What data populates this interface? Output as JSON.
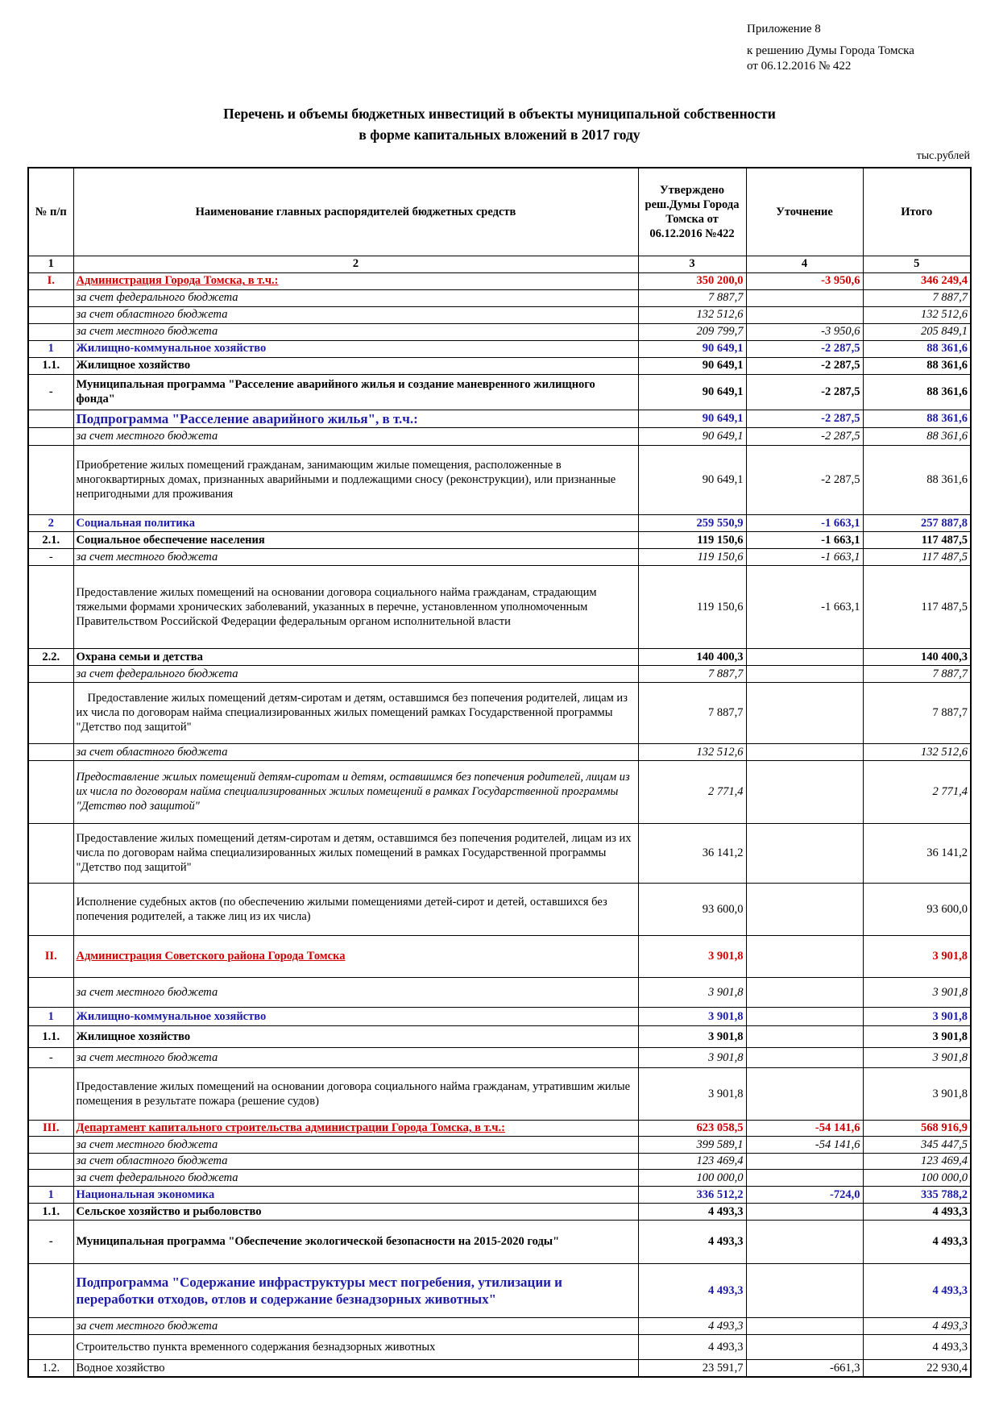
{
  "header": {
    "appendix": "Приложение 8",
    "decision": "к решению Думы Города Томска",
    "date": "от 06.12.2016  № 422"
  },
  "title": [
    "Перечень и объемы бюджетных инвестиций в объекты муниципальной собственности",
    "в форме капитальных вложений в 2017 году"
  ],
  "unit": "тыс.рублей",
  "table": {
    "columns": [
      "№ п/п",
      "Наименование главных распорядителей бюджетных средств",
      "Утверждено реш.Думы Города Томска от 06.12.2016 №422",
      "Уточнение",
      "Итого"
    ],
    "column_numbers": [
      "1",
      "2",
      "3",
      "4",
      "5"
    ],
    "rows": [
      [
        "I.",
        "Администрация Города Томска, в т.ч.:",
        "350 200,0",
        "-3 950,6",
        "346 249,4"
      ],
      [
        null,
        "за счет федерального бюджета",
        "7 887,7",
        null,
        "7 887,7"
      ],
      [
        null,
        "за счет областного бюджета",
        "132 512,6",
        null,
        "132 512,6"
      ],
      [
        null,
        "за счет  местного бюджета",
        "209 799,7",
        "-3 950,6",
        "205 849,1"
      ],
      [
        "1",
        "Жилищно-коммунальное хозяйство",
        "90 649,1",
        "-2 287,5",
        "88 361,6"
      ],
      [
        "1.1.",
        "Жилищное хозяйство",
        "90 649,1",
        "-2 287,5",
        "88 361,6"
      ],
      [
        "-",
        "Муниципальная программа \"Расселение аварийного жилья и создание маневренного жилищного фонда\"",
        "90 649,1",
        "-2 287,5",
        "88 361,6"
      ],
      [
        null,
        "Подпрограмма \"Расселение аварийного жилья\", в т.ч.:",
        "90 649,1",
        "-2 287,5",
        "88 361,6"
      ],
      [
        null,
        "за счет  местного бюджета",
        "90 649,1",
        "-2 287,5",
        "88 361,6"
      ],
      [
        null,
        "Приобретение жилых помещений гражданам, занимающим жилые помещения, расположенные в многоквартирных домах, признанных аварийными и подлежащими сносу (реконструкции), или признанные непригодными для проживания",
        "90 649,1",
        "-2 287,5",
        "88 361,6"
      ],
      [
        "2",
        "Социальная политика",
        "259 550,9",
        "-1 663,1",
        "257 887,8"
      ],
      [
        "2.1.",
        "Социальное обеспечение населения",
        "119 150,6",
        "-1 663,1",
        "117 487,5"
      ],
      [
        "-",
        "за счет  местного бюджета",
        "119 150,6",
        "-1 663,1",
        "117 487,5"
      ],
      [
        null,
        "Предоставление жилых помещений на основании договора социального найма гражданам, страдающим тяжелыми формами хронических заболеваний, указанных в перечне, установленном уполномоченным Правительством Российской Федерации федеральным органом исполнительной власти",
        "119 150,6",
        "-1 663,1",
        "117 487,5"
      ],
      [
        "2.2.",
        "Охрана семьи и детства",
        "140 400,3",
        null,
        "140 400,3"
      ],
      [
        null,
        "за счет федерального бюджета",
        "7 887,7",
        null,
        "7 887,7"
      ],
      [
        null,
        "Предоставление жилых помещений детям-сиротам и детям, оставшимся без попечения родителей, лицам из их числа по договорам найма специализированных жилых помещений рамках Государственной программы \"Детство под защитой\"",
        "7 887,7",
        null,
        "7 887,7"
      ],
      [
        null,
        "за счет областного бюджета",
        "132 512,6",
        null,
        "132 512,6"
      ],
      [
        null,
        "Предоставление жилых помещений детям-сиротам и детям, оставшимся без попечения родителей, лицам из их числа по договорам найма специализированных жилых помещений в рамках Государственной программы \"Детство под защитой\"",
        "2 771,4",
        null,
        "2 771,4"
      ],
      [
        null,
        "Предоставление жилых помещений детям-сиротам и детям, оставшимся без попечения родителей, лицам из их числа по договорам найма специализированных жилых помещений в рамках Государственной программы \"Детство под защитой\"",
        "36 141,2",
        null,
        "36 141,2"
      ],
      [
        null,
        "Исполнение судебных актов (по обеспечению жилыми помещениями детей-сирот и детей, оставшихся без попечения родителей, а также лиц из их числа)",
        "93 600,0",
        null,
        "93 600,0"
      ],
      [
        "II.",
        "Администрация Советского района Города Томска",
        "3 901,8",
        null,
        "3 901,8"
      ],
      [
        null,
        "за счет местного бюджета",
        "3 901,8",
        null,
        "3 901,8"
      ],
      [
        "1",
        "Жилищно-коммунальное хозяйство",
        "3 901,8",
        null,
        "3 901,8"
      ],
      [
        "1.1.",
        "Жилищное хозяйство",
        "3 901,8",
        null,
        "3 901,8"
      ],
      [
        "-",
        "за счет  местного бюджета",
        "3 901,8",
        null,
        "3 901,8"
      ],
      [
        null,
        "Предоставление жилых помещений на основании договора социального найма гражданам, утратившим жилые помещения в результате пожара (решение судов)",
        "3 901,8",
        null,
        "3 901,8"
      ],
      [
        "III.",
        "Департамент капитального строительства администрации Города Томска, в т.ч.:",
        "623 058,5",
        "-54 141,6",
        "568 916,9"
      ],
      [
        null,
        "за счет  местного бюджета",
        "399 589,1",
        "-54 141,6",
        "345 447,5"
      ],
      [
        null,
        "за счет областного бюджета",
        "123 469,4",
        null,
        "123 469,4"
      ],
      [
        null,
        "за счет федерального бюджета",
        "100 000,0",
        null,
        "100 000,0"
      ],
      [
        "1",
        "Национальная экономика",
        "336 512,2",
        "-724,0",
        "335 788,2"
      ],
      [
        "1.1.",
        "Сельское хозяйство и рыболовство",
        "4 493,3",
        null,
        "4 493,3"
      ],
      [
        "-",
        "Муниципальная программа \"Обеспечение экологической безопасности на 2015-2020 годы\"",
        "4 493,3",
        null,
        "4 493,3"
      ],
      [
        null,
        "Подпрограмма  \"Содержание инфраструктуры мест погребения, утилизации и переработки отходов, отлов и содержание безнадзорных животных\"",
        "4 493,3",
        null,
        "4 493,3"
      ],
      [
        null,
        "за счет  местного бюджета",
        "4 493,3",
        null,
        "4 493,3"
      ],
      [
        null,
        "Строительство пункта временного содержания безнадзорных животных",
        "4 493,3",
        null,
        "4 493,3"
      ],
      [
        "1.2.",
        "Водное хозяйство",
        "23 591,7",
        "-661,3",
        "22 930,4"
      ]
    ]
  }
}
